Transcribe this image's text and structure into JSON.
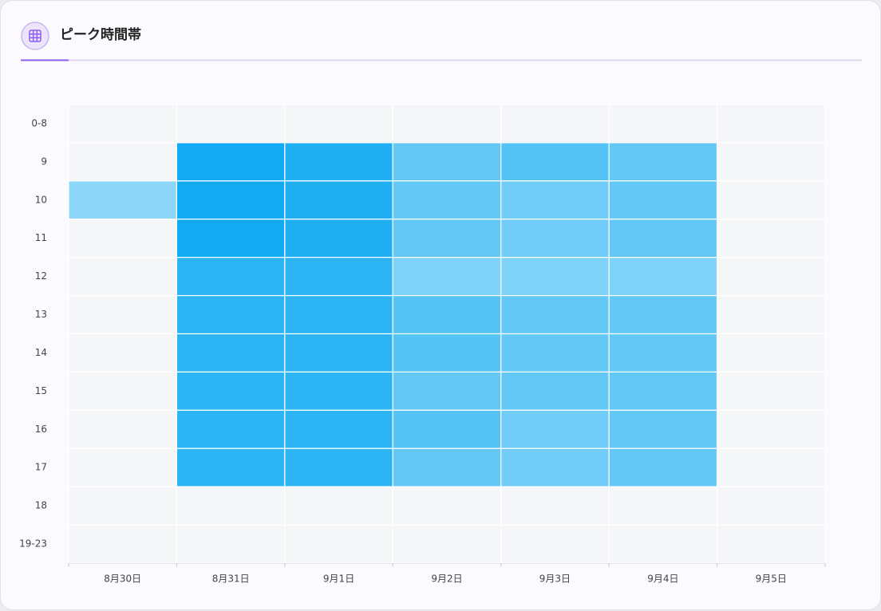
{
  "chart_data": {
    "type": "heatmap",
    "title": "ピーク時間帯",
    "x": [
      "8月30日",
      "8月31日",
      "9月1日",
      "9月2日",
      "9月3日",
      "9月4日",
      "9月5日"
    ],
    "y": [
      "0-8",
      "9",
      "10",
      "11",
      "12",
      "13",
      "14",
      "15",
      "16",
      "17",
      "18",
      "19-23"
    ],
    "values": [
      [
        null,
        null,
        null,
        null,
        null,
        null,
        null
      ],
      [
        null,
        10,
        9,
        4,
        5,
        4,
        null
      ],
      [
        1,
        10,
        9,
        4,
        3,
        4,
        null
      ],
      [
        null,
        10,
        9,
        4,
        3,
        4,
        null
      ],
      [
        null,
        8,
        8,
        2,
        2,
        2,
        null
      ],
      [
        null,
        8,
        8,
        5,
        4,
        4,
        null
      ],
      [
        null,
        8,
        8,
        5,
        4,
        4,
        null
      ],
      [
        null,
        8,
        8,
        4,
        4,
        4,
        null
      ],
      [
        null,
        8,
        8,
        5,
        3,
        4,
        null
      ],
      [
        null,
        8,
        8,
        4,
        3,
        4,
        null
      ],
      [
        null,
        null,
        null,
        null,
        null,
        null,
        null
      ],
      [
        null,
        null,
        null,
        null,
        null,
        null,
        null
      ]
    ],
    "zlim": [
      0,
      10
    ],
    "colors": [
      "#9adcfa",
      "#12aaf2"
    ],
    "empty_color": "#f4f6f8"
  }
}
